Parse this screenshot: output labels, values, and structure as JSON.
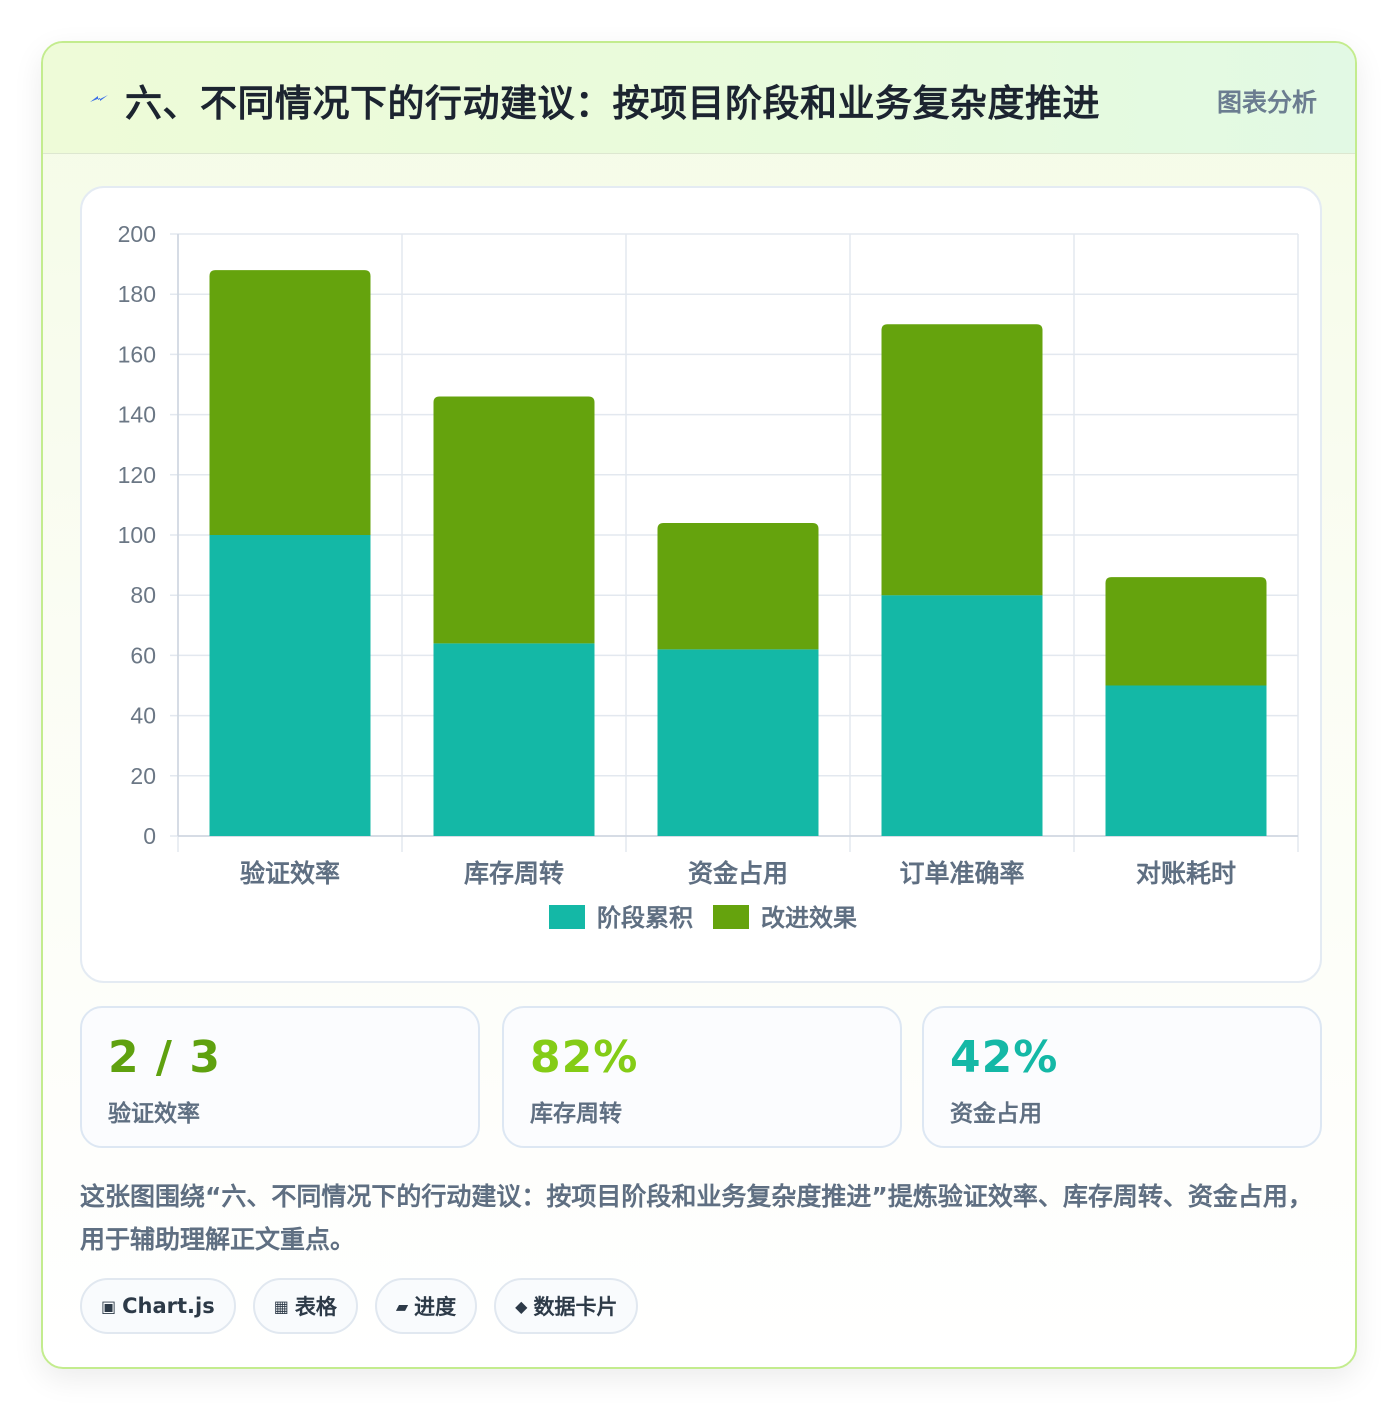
{
  "header": {
    "title": "六、不同情况下的行动建议：按项目阶段和业务复杂度推进",
    "badge": "图表分析",
    "icon": "lightning-icon"
  },
  "chart_data": {
    "type": "bar",
    "stacked": true,
    "categories": [
      "验证效率",
      "库存周转",
      "资金占用",
      "订单准确率",
      "对账耗时"
    ],
    "series": [
      {
        "name": "阶段累积",
        "values": [
          100,
          64,
          62,
          80,
          50
        ],
        "color": "#14b8a6"
      },
      {
        "name": "改进效果",
        "values": [
          88,
          82,
          42,
          90,
          36
        ],
        "color": "#65a30d"
      }
    ],
    "ylim": [
      0,
      200
    ],
    "yticks": [
      "0",
      "20",
      "40",
      "60",
      "80",
      "100",
      "120",
      "140",
      "160",
      "180",
      "200"
    ],
    "grid": true,
    "legend_position": "bottom"
  },
  "stats": [
    {
      "value": "2 / 3",
      "label": "验证效率",
      "color": "#5fa10f"
    },
    {
      "value": "82%",
      "label": "库存周转",
      "color": "#84cc16"
    },
    {
      "value": "42%",
      "label": "资金占用",
      "color": "#14b8a6"
    }
  ],
  "description": "这张图围绕“六、不同情况下的行动建议：按项目阶段和业务复杂度推进”提炼验证效率、库存周转、资金占用，用于辅助理解正文重点。",
  "tags": [
    {
      "icon": "▣",
      "icon_name": "chart-icon",
      "label": "Chart.js"
    },
    {
      "icon": "▦",
      "icon_name": "table-icon",
      "label": "表格"
    },
    {
      "icon": "▰",
      "icon_name": "progress-icon",
      "label": "进度"
    },
    {
      "icon": "◆",
      "icon_name": "diamond-icon",
      "label": "数据卡片"
    }
  ]
}
